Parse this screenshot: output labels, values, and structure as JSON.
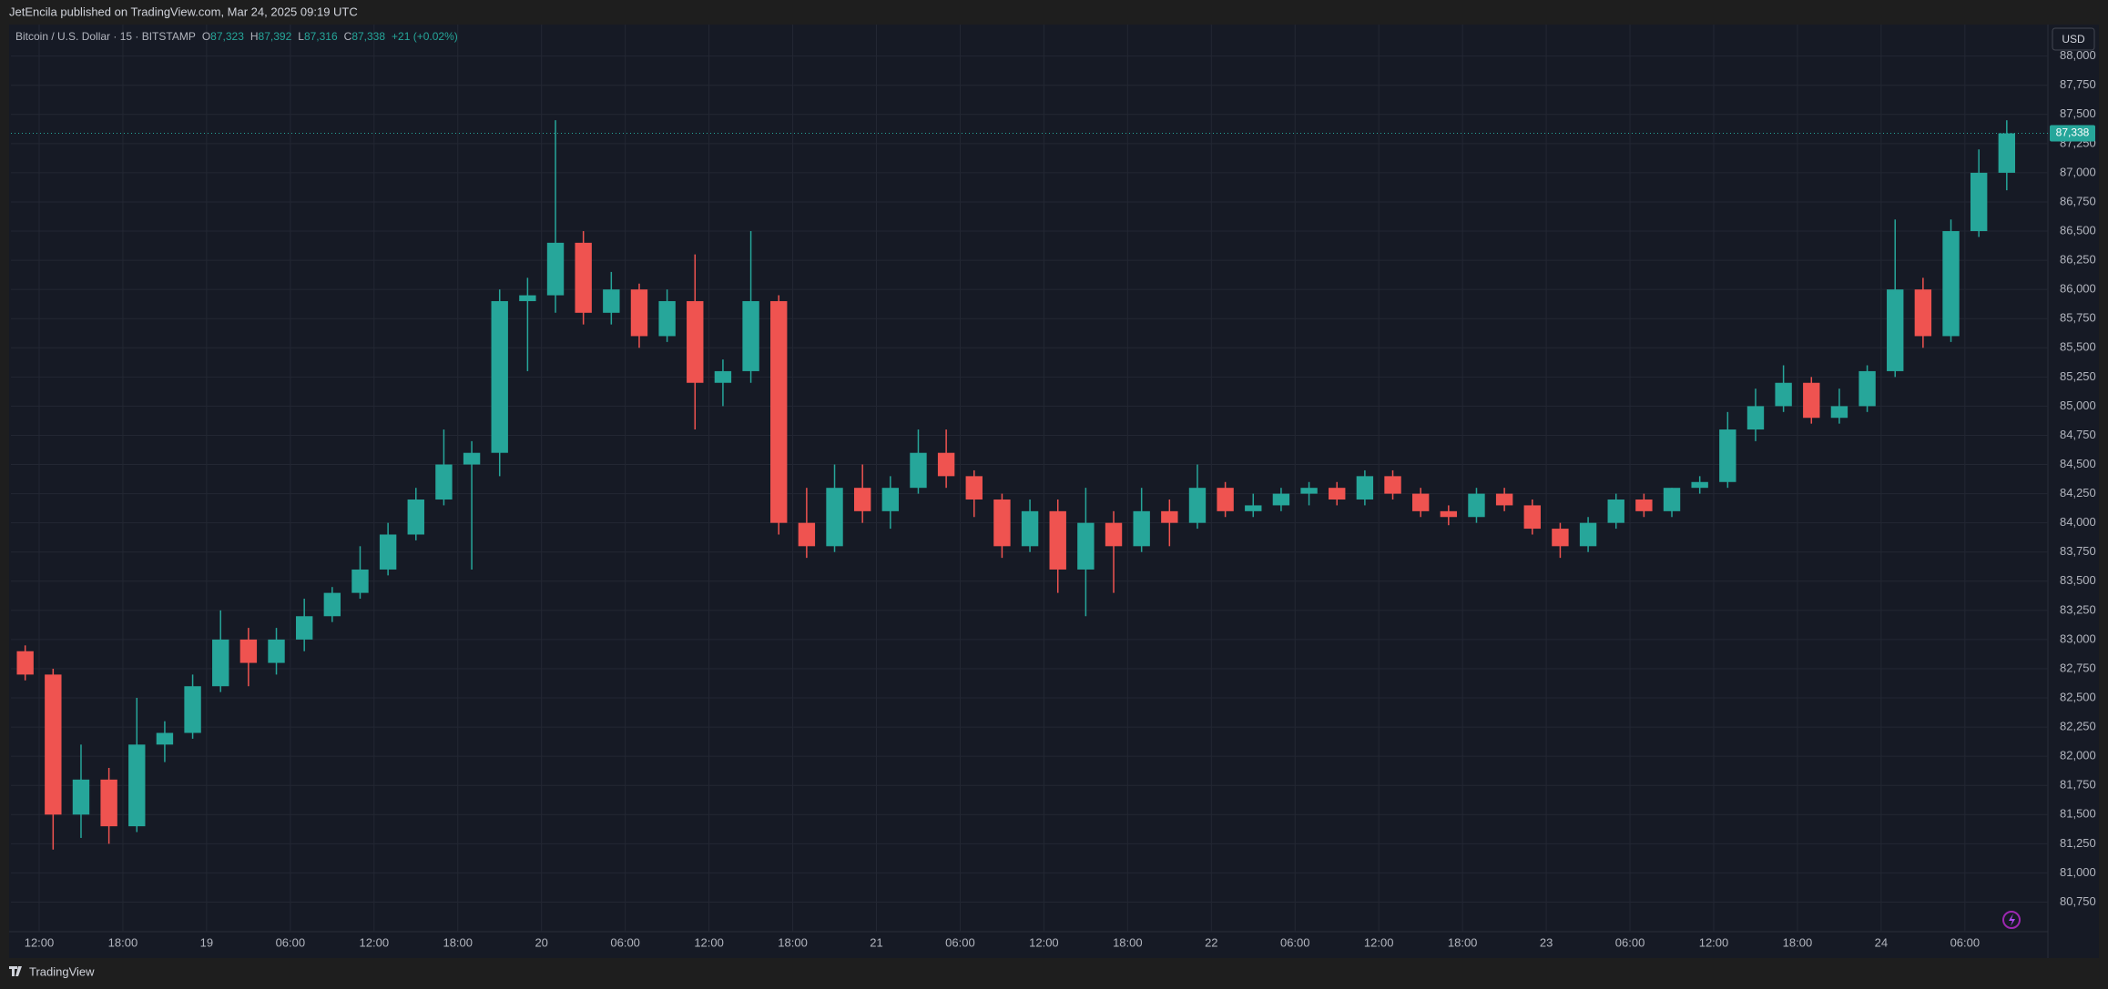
{
  "header": {
    "text": "JetEncila published on TradingView.com, Mar 24, 2025 09:19 UTC"
  },
  "footer": {
    "brand": "TradingView"
  },
  "chart_data": {
    "type": "candlestick",
    "legend": {
      "symbol": "Bitcoin / U.S. Dollar · 15 · BITSTAMP",
      "ohlc": [
        {
          "key": "O",
          "value": "87,323"
        },
        {
          "key": "H",
          "value": "87,392"
        },
        {
          "key": "L",
          "value": "87,316"
        },
        {
          "key": "C",
          "value": "87,338"
        }
      ],
      "change": "+21 (+0.02%)"
    },
    "currency": "USD",
    "last_price": {
      "value": 87338,
      "label": "87,338"
    },
    "up_color": "#26a69a",
    "down_color": "#ef5350",
    "grid": true,
    "categories": [
      null,
      "12:00",
      null,
      null,
      "18:00",
      null,
      null,
      "19",
      null,
      null,
      "06:00",
      null,
      null,
      "12:00",
      null,
      null,
      "18:00",
      null,
      null,
      "20",
      null,
      null,
      "06:00",
      null,
      null,
      "12:00",
      null,
      null,
      "18:00",
      null,
      null,
      "21",
      null,
      null,
      "06:00",
      null,
      null,
      "12:00",
      null,
      null,
      "18:00",
      null,
      null,
      "22",
      null,
      null,
      "06:00",
      null,
      null,
      "12:00",
      null,
      null,
      "18:00",
      null,
      null,
      "23",
      null,
      null,
      "06:00",
      null,
      null,
      "12:00",
      null,
      null,
      "18:00",
      null,
      null,
      "24",
      null,
      null,
      "06:00",
      null
    ],
    "open": [
      82900,
      82700,
      81500,
      81800,
      81400,
      82100,
      82200,
      82600,
      83000,
      82800,
      83000,
      83200,
      83400,
      83600,
      83900,
      84200,
      84500,
      84600,
      85900,
      85950,
      86400,
      85800,
      86000,
      85600,
      85900,
      85200,
      85300,
      85900,
      84000,
      83800,
      84300,
      84100,
      84300,
      84600,
      84400,
      84200,
      83800,
      84100,
      83600,
      84000,
      83800,
      84100,
      84000,
      84300,
      84100,
      84150,
      84250,
      84300,
      84200,
      84400,
      84250,
      84100,
      84050,
      84250,
      84150,
      83950,
      83800,
      84000,
      84200,
      84100,
      84300,
      84350,
      84800,
      85000,
      85200,
      84900,
      85000,
      85300,
      86000,
      85600,
      86500,
      87000
    ],
    "high": [
      82950,
      82750,
      82100,
      81900,
      82500,
      82300,
      82700,
      83250,
      83100,
      83100,
      83350,
      83450,
      83800,
      84000,
      84300,
      84800,
      84700,
      86000,
      86100,
      87450,
      86500,
      86150,
      86050,
      86000,
      86300,
      85400,
      86500,
      85950,
      84300,
      84500,
      84500,
      84400,
      84800,
      84800,
      84450,
      84250,
      84200,
      84200,
      84300,
      84100,
      84300,
      84200,
      84500,
      84350,
      84250,
      84300,
      84350,
      84350,
      84450,
      84450,
      84300,
      84150,
      84300,
      84300,
      84200,
      84000,
      84050,
      84250,
      84250,
      84300,
      84400,
      84950,
      85150,
      85350,
      85250,
      85150,
      85350,
      86600,
      86100,
      86600,
      87200,
      87450
    ],
    "low": [
      82650,
      81200,
      81300,
      81250,
      81350,
      81950,
      82150,
      82550,
      82600,
      82700,
      82900,
      83150,
      83350,
      83550,
      83850,
      84150,
      83600,
      84400,
      85300,
      85800,
      85700,
      85700,
      85500,
      85550,
      84800,
      85000,
      85200,
      83900,
      83700,
      83750,
      84000,
      83950,
      84250,
      84300,
      84050,
      83700,
      83750,
      83400,
      83200,
      83400,
      83750,
      83800,
      83950,
      84050,
      84050,
      84100,
      84150,
      84150,
      84150,
      84200,
      84050,
      83980,
      84000,
      84100,
      83900,
      83700,
      83750,
      83950,
      84050,
      84050,
      84250,
      84300,
      84700,
      84950,
      84850,
      84850,
      84950,
      85250,
      85500,
      85550,
      86450,
      86850
    ],
    "close": [
      82700,
      81500,
      81800,
      81400,
      82100,
      82200,
      82600,
      83000,
      82800,
      83000,
      83200,
      83400,
      83600,
      83900,
      84200,
      84500,
      84600,
      85900,
      85950,
      86400,
      85800,
      86000,
      85600,
      85900,
      85200,
      85300,
      85900,
      84000,
      83800,
      84300,
      84100,
      84300,
      84600,
      84400,
      84200,
      83800,
      84100,
      83600,
      84000,
      83800,
      84100,
      84000,
      84300,
      84100,
      84150,
      84250,
      84300,
      84200,
      84400,
      84250,
      84100,
      84050,
      84250,
      84150,
      83950,
      83800,
      84000,
      84200,
      84100,
      84300,
      84350,
      84800,
      85000,
      85200,
      84900,
      85000,
      85300,
      86000,
      85600,
      86500,
      87000,
      87338
    ],
    "ylim": [
      80520,
      88270
    ],
    "yticks": [
      {
        "value": 80750,
        "label": "80,750"
      },
      {
        "value": 81000,
        "label": "81,000"
      },
      {
        "value": 81250,
        "label": "81,250"
      },
      {
        "value": 81500,
        "label": "81,500"
      },
      {
        "value": 81750,
        "label": "81,750"
      },
      {
        "value": 82000,
        "label": "82,000"
      },
      {
        "value": 82250,
        "label": "82,250"
      },
      {
        "value": 82500,
        "label": "82,500"
      },
      {
        "value": 82750,
        "label": "82,750"
      },
      {
        "value": 83000,
        "label": "83,000"
      },
      {
        "value": 83250,
        "label": "83,250"
      },
      {
        "value": 83500,
        "label": "83,500"
      },
      {
        "value": 83750,
        "label": "83,750"
      },
      {
        "value": 84000,
        "label": "84,000"
      },
      {
        "value": 84250,
        "label": "84,250"
      },
      {
        "value": 84500,
        "label": "84,500"
      },
      {
        "value": 84750,
        "label": "84,750"
      },
      {
        "value": 85000,
        "label": "85,000"
      },
      {
        "value": 85250,
        "label": "85,250"
      },
      {
        "value": 85500,
        "label": "85,500"
      },
      {
        "value": 85750,
        "label": "85,750"
      },
      {
        "value": 86000,
        "label": "86,000"
      },
      {
        "value": 86250,
        "label": "86,250"
      },
      {
        "value": 86500,
        "label": "86,500"
      },
      {
        "value": 86750,
        "label": "86,750"
      },
      {
        "value": 87000,
        "label": "87,000"
      },
      {
        "value": 87250,
        "label": "87,250"
      },
      {
        "value": 87500,
        "label": "87,500"
      },
      {
        "value": 87750,
        "label": "87,750"
      },
      {
        "value": 88000,
        "label": "88,000"
      }
    ]
  }
}
